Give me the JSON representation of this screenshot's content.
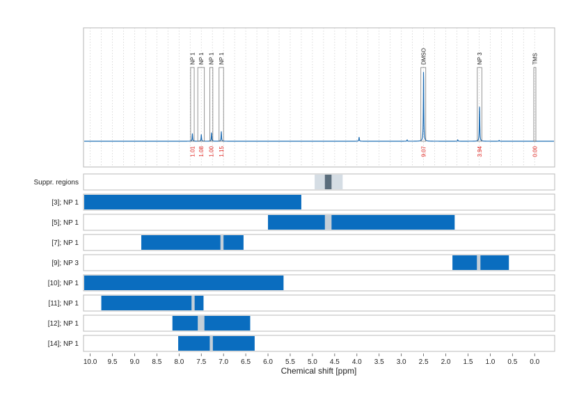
{
  "chart_data": {
    "type": "nmr-spectrum-with-interval-bars",
    "xlabel": "Chemical shift [ppm]",
    "xlim": [
      10.15,
      -0.45
    ],
    "x_ticks": [
      "10.0",
      "9.5",
      "9.0",
      "8.5",
      "8.0",
      "7.5",
      "7.0",
      "6.5",
      "6.0",
      "5.5",
      "5.0",
      "4.5",
      "4.0",
      "3.5",
      "3.0",
      "2.5",
      "2.0",
      "1.5",
      "1.0",
      "0.5",
      "0.0"
    ],
    "x_tick_values": [
      10.0,
      9.5,
      9.0,
      8.5,
      8.0,
      7.5,
      7.0,
      6.5,
      6.0,
      5.5,
      5.0,
      4.5,
      4.0,
      3.5,
      3.0,
      2.5,
      2.0,
      1.5,
      1.0,
      0.5,
      0.0
    ],
    "grid": true,
    "spectrum_color": "#1f6db3",
    "peaks": [
      {
        "label": "NP 1",
        "center": 7.7,
        "height": 0.075,
        "box": [
          7.74,
          7.66
        ],
        "integral": "1.01"
      },
      {
        "label": "NP 1",
        "center": 7.5,
        "height": 0.065,
        "box": [
          7.58,
          7.43
        ],
        "integral": "1.08"
      },
      {
        "label": "NP 1",
        "center": 7.27,
        "height": 0.085,
        "box": [
          7.31,
          7.24
        ],
        "integral": "1.00"
      },
      {
        "label": "NP 1",
        "center": 7.05,
        "height": 0.095,
        "box": [
          7.1,
          7.0
        ],
        "integral": "1.15"
      },
      {
        "label": "DMSO",
        "center": 2.5,
        "height": 0.7,
        "box": [
          2.56,
          2.45
        ],
        "integral": "9.07"
      },
      {
        "label": "NP 3",
        "center": 1.24,
        "height": 0.34,
        "box": [
          1.29,
          1.19
        ],
        "integral": "3.94"
      },
      {
        "label": "TMS",
        "center": 0.0,
        "height": 0.0,
        "box": [
          0.02,
          -0.02
        ],
        "integral": "0.00"
      }
    ],
    "minor_peaks": [
      {
        "center": 3.95,
        "height": 0.04
      },
      {
        "center": 2.87,
        "height": 0.012
      },
      {
        "center": 1.73,
        "height": 0.012
      },
      {
        "center": 0.8,
        "height": 0.008
      }
    ],
    "rows": [
      {
        "label": "Suppr. regions",
        "bars": [],
        "suppr_outer": [
          4.95,
          4.32
        ],
        "suppr_inner": [
          4.72,
          4.57
        ]
      },
      {
        "label": "[3]; NP 1",
        "bars": [
          [
            10.15,
            5.25
          ]
        ],
        "gaps": []
      },
      {
        "label": "[5]; NP 1",
        "bars": [
          [
            6.0,
            1.8
          ]
        ],
        "gaps": [
          [
            4.72,
            4.57
          ]
        ]
      },
      {
        "label": "[7]; NP 1",
        "bars": [
          [
            8.85,
            6.55
          ]
        ],
        "gaps": [
          [
            7.07,
            7.0
          ]
        ]
      },
      {
        "label": "[9]; NP 3",
        "bars": [
          [
            1.85,
            0.58
          ]
        ],
        "gaps": [
          [
            1.3,
            1.22
          ]
        ]
      },
      {
        "label": "[10]; NP 1",
        "bars": [
          [
            10.15,
            5.65
          ]
        ],
        "gaps": []
      },
      {
        "label": "[11]; NP 1",
        "bars": [
          [
            9.75,
            7.45
          ]
        ],
        "gaps": [
          [
            7.72,
            7.65
          ]
        ]
      },
      {
        "label": "[12]; NP 1",
        "bars": [
          [
            8.15,
            6.4
          ]
        ],
        "gaps": [
          [
            7.58,
            7.43
          ]
        ]
      },
      {
        "label": "[14]; NP 1",
        "bars": [
          [
            8.02,
            6.3
          ]
        ],
        "gaps": [
          [
            7.31,
            7.24
          ]
        ]
      }
    ],
    "bar_color": "#0a6dbf",
    "gap_color": "#c4cfd8",
    "suppr_outer_color": "#d5dde4",
    "suppr_inner_color": "#5a6d7c"
  }
}
